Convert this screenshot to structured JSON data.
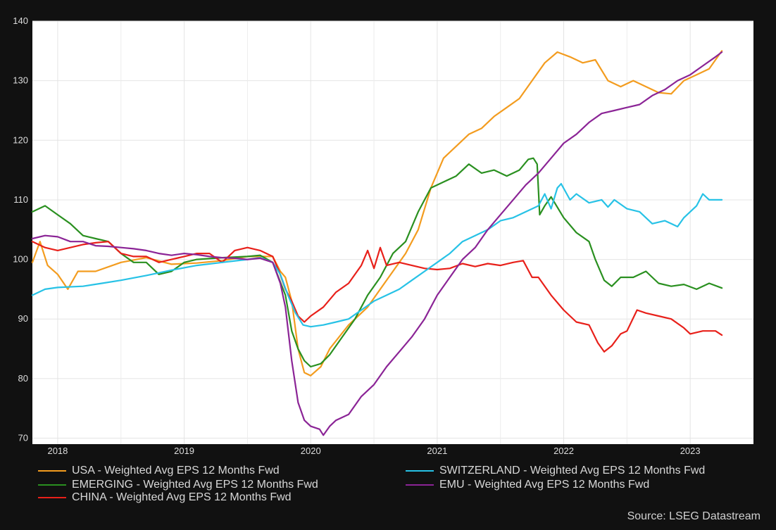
{
  "chart_data": {
    "type": "line",
    "title": "",
    "xlabel": "",
    "ylabel": "",
    "ylim": [
      69,
      140
    ],
    "xlim": [
      2017.8,
      2023.5
    ],
    "yticks": [
      70,
      80,
      90,
      100,
      110,
      120,
      130,
      140
    ],
    "xticks": [
      {
        "label": "2018",
        "value": 2018.0
      },
      {
        "label": "2019",
        "value": 2019.0
      },
      {
        "label": "2020",
        "value": 2020.0
      },
      {
        "label": "2021",
        "value": 2021.0
      },
      {
        "label": "2022",
        "value": 2022.0
      },
      {
        "label": "2023",
        "value": 2023.0
      }
    ],
    "grid": true,
    "legend_position": "bottom",
    "series": [
      {
        "name": "USA - Weighted Avg EPS 12 Months Fwd",
        "color": "#f39c1f",
        "points": [
          [
            2017.8,
            99.5
          ],
          [
            2017.86,
            103
          ],
          [
            2017.92,
            99
          ],
          [
            2018.0,
            97.5
          ],
          [
            2018.08,
            95
          ],
          [
            2018.16,
            98
          ],
          [
            2018.3,
            98
          ],
          [
            2018.5,
            99.5
          ],
          [
            2018.7,
            100.3
          ],
          [
            2018.9,
            99.2
          ],
          [
            2019.1,
            99.4
          ],
          [
            2019.3,
            99.8
          ],
          [
            2019.5,
            100.5
          ],
          [
            2019.6,
            100.5
          ],
          [
            2019.7,
            100.5
          ],
          [
            2019.76,
            98
          ],
          [
            2019.8,
            97
          ],
          [
            2019.85,
            93
          ],
          [
            2019.9,
            85
          ],
          [
            2019.95,
            81
          ],
          [
            2020.0,
            80.5
          ],
          [
            2020.08,
            82
          ],
          [
            2020.15,
            85
          ],
          [
            2020.3,
            89
          ],
          [
            2020.45,
            92
          ],
          [
            2020.55,
            95
          ],
          [
            2020.65,
            98
          ],
          [
            2020.75,
            101
          ],
          [
            2020.85,
            105
          ],
          [
            2020.95,
            112
          ],
          [
            2021.05,
            117
          ],
          [
            2021.15,
            119
          ],
          [
            2021.25,
            121
          ],
          [
            2021.35,
            122
          ],
          [
            2021.45,
            124
          ],
          [
            2021.55,
            125.5
          ],
          [
            2021.65,
            127
          ],
          [
            2021.75,
            130
          ],
          [
            2021.85,
            133
          ],
          [
            2021.95,
            134.8
          ],
          [
            2022.05,
            134
          ],
          [
            2022.15,
            133
          ],
          [
            2022.25,
            133.5
          ],
          [
            2022.35,
            130
          ],
          [
            2022.45,
            129
          ],
          [
            2022.55,
            130
          ],
          [
            2022.65,
            129
          ],
          [
            2022.75,
            128
          ],
          [
            2022.85,
            127.8
          ],
          [
            2022.95,
            130
          ],
          [
            2023.05,
            131
          ],
          [
            2023.15,
            132
          ],
          [
            2023.25,
            135
          ]
        ]
      },
      {
        "name": "EMERGING - Weighted Avg EPS 12 Months Fwd",
        "color": "#2a9020",
        "points": [
          [
            2017.8,
            108
          ],
          [
            2017.9,
            109
          ],
          [
            2018.0,
            107.5
          ],
          [
            2018.1,
            106
          ],
          [
            2018.2,
            104
          ],
          [
            2018.3,
            103.5
          ],
          [
            2018.4,
            103
          ],
          [
            2018.5,
            101
          ],
          [
            2018.6,
            99.5
          ],
          [
            2018.7,
            99.5
          ],
          [
            2018.8,
            97.5
          ],
          [
            2018.9,
            98
          ],
          [
            2019.0,
            99.5
          ],
          [
            2019.1,
            100
          ],
          [
            2019.3,
            100.3
          ],
          [
            2019.5,
            100.5
          ],
          [
            2019.6,
            100.7
          ],
          [
            2019.7,
            99.5
          ],
          [
            2019.8,
            94
          ],
          [
            2019.85,
            88
          ],
          [
            2019.9,
            85
          ],
          [
            2019.95,
            83
          ],
          [
            2020.0,
            82
          ],
          [
            2020.08,
            82.5
          ],
          [
            2020.15,
            84
          ],
          [
            2020.25,
            87
          ],
          [
            2020.35,
            90
          ],
          [
            2020.45,
            94
          ],
          [
            2020.55,
            97
          ],
          [
            2020.65,
            101
          ],
          [
            2020.75,
            103
          ],
          [
            2020.85,
            108
          ],
          [
            2020.95,
            112
          ],
          [
            2021.05,
            113
          ],
          [
            2021.15,
            114
          ],
          [
            2021.25,
            116
          ],
          [
            2021.35,
            114.5
          ],
          [
            2021.45,
            115
          ],
          [
            2021.55,
            114
          ],
          [
            2021.65,
            115
          ],
          [
            2021.72,
            116.8
          ],
          [
            2021.76,
            117
          ],
          [
            2021.79,
            116
          ],
          [
            2021.81,
            107.5
          ],
          [
            2021.85,
            109
          ],
          [
            2021.9,
            110.5
          ],
          [
            2022.0,
            107
          ],
          [
            2022.1,
            104.5
          ],
          [
            2022.2,
            103
          ],
          [
            2022.25,
            100
          ],
          [
            2022.32,
            96.5
          ],
          [
            2022.38,
            95.5
          ],
          [
            2022.45,
            97
          ],
          [
            2022.55,
            97
          ],
          [
            2022.65,
            98
          ],
          [
            2022.75,
            96
          ],
          [
            2022.85,
            95.5
          ],
          [
            2022.95,
            95.8
          ],
          [
            2023.05,
            95
          ],
          [
            2023.15,
            96
          ],
          [
            2023.25,
            95.2
          ]
        ]
      },
      {
        "name": "CHINA - Weighted Avg EPS 12 Months Fwd",
        "color": "#e8201a",
        "points": [
          [
            2017.8,
            103
          ],
          [
            2017.9,
            102
          ],
          [
            2018.0,
            101.5
          ],
          [
            2018.1,
            102
          ],
          [
            2018.2,
            102.5
          ],
          [
            2018.3,
            102.8
          ],
          [
            2018.4,
            103
          ],
          [
            2018.5,
            101
          ],
          [
            2018.6,
            100.5
          ],
          [
            2018.7,
            100.5
          ],
          [
            2018.8,
            99.5
          ],
          [
            2018.9,
            100
          ],
          [
            2019.0,
            100.5
          ],
          [
            2019.1,
            101
          ],
          [
            2019.2,
            101
          ],
          [
            2019.3,
            99.5
          ],
          [
            2019.4,
            101.5
          ],
          [
            2019.5,
            102
          ],
          [
            2019.6,
            101.5
          ],
          [
            2019.7,
            100.5
          ],
          [
            2019.75,
            98
          ],
          [
            2019.8,
            95
          ],
          [
            2019.85,
            93
          ],
          [
            2019.9,
            90.5
          ],
          [
            2019.95,
            89.5
          ],
          [
            2020.0,
            90.5
          ],
          [
            2020.1,
            92
          ],
          [
            2020.2,
            94.5
          ],
          [
            2020.3,
            96
          ],
          [
            2020.4,
            99
          ],
          [
            2020.45,
            101.5
          ],
          [
            2020.5,
            98.5
          ],
          [
            2020.55,
            102
          ],
          [
            2020.6,
            99
          ],
          [
            2020.7,
            99.5
          ],
          [
            2020.8,
            99
          ],
          [
            2020.9,
            98.5
          ],
          [
            2021.0,
            98.3
          ],
          [
            2021.1,
            98.5
          ],
          [
            2021.2,
            99.3
          ],
          [
            2021.3,
            98.8
          ],
          [
            2021.4,
            99.3
          ],
          [
            2021.5,
            99
          ],
          [
            2021.6,
            99.5
          ],
          [
            2021.68,
            99.8
          ],
          [
            2021.75,
            97
          ],
          [
            2021.8,
            97
          ],
          [
            2021.9,
            94
          ],
          [
            2022.0,
            91.5
          ],
          [
            2022.1,
            89.5
          ],
          [
            2022.2,
            89
          ],
          [
            2022.27,
            86
          ],
          [
            2022.32,
            84.5
          ],
          [
            2022.38,
            85.5
          ],
          [
            2022.45,
            87.5
          ],
          [
            2022.5,
            88
          ],
          [
            2022.58,
            91.5
          ],
          [
            2022.65,
            91
          ],
          [
            2022.75,
            90.5
          ],
          [
            2022.85,
            90
          ],
          [
            2022.95,
            88.5
          ],
          [
            2023.0,
            87.5
          ],
          [
            2023.1,
            88
          ],
          [
            2023.2,
            88
          ],
          [
            2023.25,
            87.3
          ]
        ]
      },
      {
        "name": "SWITZERLAND - Weighted Avg EPS 12 Months Fwd",
        "color": "#27c2e6",
        "points": [
          [
            2017.8,
            94
          ],
          [
            2017.9,
            95
          ],
          [
            2018.0,
            95.3
          ],
          [
            2018.2,
            95.5
          ],
          [
            2018.35,
            96
          ],
          [
            2018.5,
            96.5
          ],
          [
            2018.7,
            97.3
          ],
          [
            2018.9,
            98.2
          ],
          [
            2019.1,
            99
          ],
          [
            2019.3,
            99.5
          ],
          [
            2019.5,
            100
          ],
          [
            2019.6,
            100.3
          ],
          [
            2019.7,
            99.5
          ],
          [
            2019.76,
            97.5
          ],
          [
            2019.82,
            94
          ],
          [
            2019.88,
            91
          ],
          [
            2019.94,
            89
          ],
          [
            2020.0,
            88.7
          ],
          [
            2020.1,
            89
          ],
          [
            2020.2,
            89.5
          ],
          [
            2020.3,
            90
          ],
          [
            2020.4,
            91.5
          ],
          [
            2020.5,
            93
          ],
          [
            2020.6,
            94
          ],
          [
            2020.7,
            95
          ],
          [
            2020.8,
            96.5
          ],
          [
            2020.9,
            98
          ],
          [
            2021.0,
            99.5
          ],
          [
            2021.1,
            101
          ],
          [
            2021.2,
            103
          ],
          [
            2021.3,
            104
          ],
          [
            2021.4,
            105
          ],
          [
            2021.5,
            106.5
          ],
          [
            2021.6,
            107
          ],
          [
            2021.7,
            108
          ],
          [
            2021.8,
            109
          ],
          [
            2021.85,
            111
          ],
          [
            2021.9,
            108.5
          ],
          [
            2021.95,
            112
          ],
          [
            2021.98,
            112.7
          ],
          [
            2022.05,
            110
          ],
          [
            2022.1,
            111
          ],
          [
            2022.2,
            109.5
          ],
          [
            2022.3,
            110
          ],
          [
            2022.35,
            108.8
          ],
          [
            2022.4,
            110
          ],
          [
            2022.5,
            108.5
          ],
          [
            2022.6,
            108
          ],
          [
            2022.7,
            106
          ],
          [
            2022.8,
            106.5
          ],
          [
            2022.85,
            106
          ],
          [
            2022.9,
            105.5
          ],
          [
            2022.95,
            107
          ],
          [
            2023.05,
            109
          ],
          [
            2023.1,
            111
          ],
          [
            2023.15,
            110
          ],
          [
            2023.25,
            110
          ]
        ]
      },
      {
        "name": "EMU - Weighted Avg EPS 12 Months Fwd",
        "color": "#8b2496",
        "points": [
          [
            2017.8,
            103.5
          ],
          [
            2017.9,
            104
          ],
          [
            2018.0,
            103.8
          ],
          [
            2018.1,
            103
          ],
          [
            2018.2,
            103
          ],
          [
            2018.3,
            102.3
          ],
          [
            2018.4,
            102.2
          ],
          [
            2018.5,
            102
          ],
          [
            2018.6,
            101.8
          ],
          [
            2018.7,
            101.5
          ],
          [
            2018.8,
            101
          ],
          [
            2018.9,
            100.7
          ],
          [
            2019.0,
            101
          ],
          [
            2019.1,
            100.8
          ],
          [
            2019.2,
            100.5
          ],
          [
            2019.3,
            100.3
          ],
          [
            2019.4,
            100.2
          ],
          [
            2019.5,
            100
          ],
          [
            2019.6,
            100.2
          ],
          [
            2019.7,
            99.5
          ],
          [
            2019.76,
            96
          ],
          [
            2019.8,
            92
          ],
          [
            2019.85,
            83
          ],
          [
            2019.9,
            76
          ],
          [
            2019.95,
            73
          ],
          [
            2020.0,
            72
          ],
          [
            2020.07,
            71.5
          ],
          [
            2020.1,
            70.5
          ],
          [
            2020.15,
            72
          ],
          [
            2020.2,
            73
          ],
          [
            2020.3,
            74
          ],
          [
            2020.4,
            77
          ],
          [
            2020.5,
            79
          ],
          [
            2020.6,
            82
          ],
          [
            2020.7,
            84.5
          ],
          [
            2020.8,
            87
          ],
          [
            2020.9,
            90
          ],
          [
            2021.0,
            94
          ],
          [
            2021.1,
            97
          ],
          [
            2021.2,
            100
          ],
          [
            2021.3,
            102
          ],
          [
            2021.4,
            105
          ],
          [
            2021.5,
            107.5
          ],
          [
            2021.6,
            110
          ],
          [
            2021.7,
            112.5
          ],
          [
            2021.8,
            114.5
          ],
          [
            2021.9,
            117
          ],
          [
            2022.0,
            119.5
          ],
          [
            2022.1,
            121
          ],
          [
            2022.2,
            123
          ],
          [
            2022.3,
            124.5
          ],
          [
            2022.4,
            125
          ],
          [
            2022.5,
            125.5
          ],
          [
            2022.6,
            126
          ],
          [
            2022.7,
            127.5
          ],
          [
            2022.8,
            128.5
          ],
          [
            2022.9,
            130
          ],
          [
            2023.0,
            131
          ],
          [
            2023.1,
            132.5
          ],
          [
            2023.2,
            134
          ],
          [
            2023.25,
            134.8
          ]
        ]
      }
    ],
    "source": "Source: LSEG Datastream"
  }
}
